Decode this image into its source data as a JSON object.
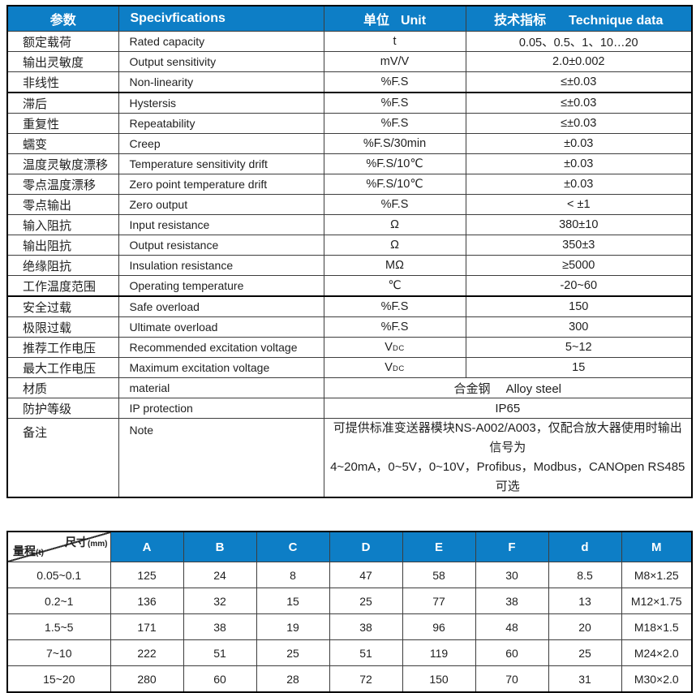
{
  "colors": {
    "header_blue": "#0d7ec6",
    "border_thin": "#3d3d3d",
    "border_thick": "#000000",
    "text": "#1f1f1f",
    "header_text": "#ffffff"
  },
  "spec_table": {
    "headers": {
      "param": "参数",
      "spec": "Specivfications",
      "unit_cn": "单位",
      "unit_en": "Unit",
      "data_cn": "技术指标",
      "data_en": "Technique data"
    },
    "rows": [
      {
        "cn": "额定载荷",
        "en": "Rated capacity",
        "unit": "t",
        "value": "0.05、0.5、1、10…20"
      },
      {
        "cn": "输出灵敏度",
        "en": "Output sensitivity",
        "unit": "mV/V",
        "value": "2.0±0.002"
      },
      {
        "cn": "非线性",
        "en": "Non-linearity",
        "unit": "%F.S",
        "value": "≤±0.03",
        "thick_bottom": true
      },
      {
        "cn": "滞后",
        "en": "Hystersis",
        "unit": "%F.S",
        "value": "≤±0.03"
      },
      {
        "cn": "重复性",
        "en": "Repeatability",
        "unit": "%F.S",
        "value": "≤±0.03"
      },
      {
        "cn": "蠕变",
        "en": "Creep",
        "unit": "%F.S/30min",
        "value": "±0.03"
      },
      {
        "cn": "温度灵敏度漂移",
        "en": "Temperature sensitivity drift",
        "unit": "%F.S/10℃",
        "value": "±0.03"
      },
      {
        "cn": "零点温度漂移",
        "en": "Zero point temperature drift",
        "unit": "%F.S/10℃",
        "value": "±0.03"
      },
      {
        "cn": "零点输出",
        "en": "Zero output",
        "unit": "%F.S",
        "value": "< ±1"
      },
      {
        "cn": "输入阻抗",
        "en": "Input resistance",
        "unit": "Ω",
        "value": "380±10"
      },
      {
        "cn": "输出阻抗",
        "en": "Output resistance",
        "unit": "Ω",
        "value": "350±3"
      },
      {
        "cn": "绝缘阻抗",
        "en": "Insulation resistance",
        "unit": "MΩ",
        "value": "≥5000"
      },
      {
        "cn": "工作温度范围",
        "en": "Operating temperature",
        "unit": "℃",
        "value": "-20~60",
        "thick_bottom": true
      },
      {
        "cn": "安全过载",
        "en": "Safe overload",
        "unit": "%F.S",
        "value": "150"
      },
      {
        "cn": "极限过载",
        "en": "Ultimate overload",
        "unit": "%F.S",
        "value": "300"
      },
      {
        "cn": "推荐工作电压",
        "en": "Recommended excitation voltage",
        "unit": "V",
        "unit_sub": "DC",
        "value": "5~12"
      },
      {
        "cn": "最大工作电压",
        "en": "Maximum excitation voltage",
        "unit": "V",
        "unit_sub": "DC",
        "value": "15"
      },
      {
        "cn": "材质",
        "en": "material",
        "merged": "合金钢　 Alloy steel"
      },
      {
        "cn": "防护等级",
        "en": "IP protection",
        "merged": "IP65"
      },
      {
        "cn": "备注",
        "en": "Note",
        "note": "可提供标准变送器模块NS-A002/A003，仅配合放大器使用时输出信号为\n4~20mA，0~5V，0~10V，Profibus，Modbus，CANOpen RS485可选"
      }
    ]
  },
  "dim_table": {
    "corner": {
      "top": "尺寸",
      "top_sub": "(mm)",
      "bottom": "量程",
      "bottom_sub": "(t)"
    },
    "columns": [
      "A",
      "B",
      "C",
      "D",
      "E",
      "F",
      "d",
      "M"
    ],
    "rows": [
      {
        "range": "0.05~0.1",
        "values": [
          "125",
          "24",
          "8",
          "47",
          "58",
          "30",
          "8.5",
          "M8×1.25"
        ]
      },
      {
        "range": "0.2~1",
        "values": [
          "136",
          "32",
          "15",
          "25",
          "77",
          "38",
          "13",
          "M12×1.75"
        ]
      },
      {
        "range": "1.5~5",
        "values": [
          "171",
          "38",
          "19",
          "38",
          "96",
          "48",
          "20",
          "M18×1.5"
        ]
      },
      {
        "range": "7~10",
        "values": [
          "222",
          "51",
          "25",
          "51",
          "119",
          "60",
          "25",
          "M24×2.0"
        ]
      },
      {
        "range": "15~20",
        "values": [
          "280",
          "60",
          "28",
          "72",
          "150",
          "70",
          "31",
          "M30×2.0"
        ]
      }
    ]
  }
}
